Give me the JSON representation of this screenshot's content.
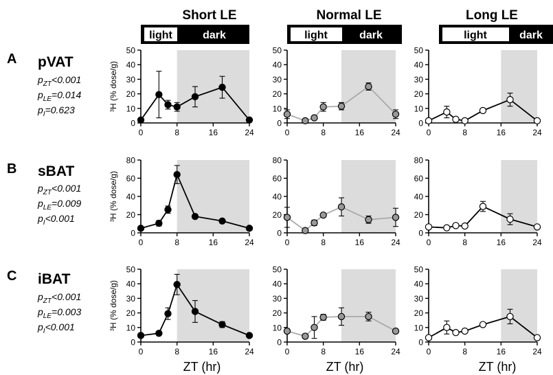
{
  "columns": [
    {
      "title": "Short LE",
      "light_label": "light",
      "dark_label": "dark",
      "light_fraction": 0.333
    },
    {
      "title": "Normal LE",
      "light_label": "light",
      "dark_label": "dark",
      "light_fraction": 0.5
    },
    {
      "title": "Long LE",
      "light_label": "light",
      "dark_label": "dark",
      "light_fraction": 0.667
    }
  ],
  "rows": [
    {
      "letter": "A",
      "tissue": "pVAT",
      "stats": [
        {
          "p": "p",
          "sub": "ZT",
          "rest": "<0.001"
        },
        {
          "p": "p",
          "sub": "LE",
          "rest": "=0.014"
        },
        {
          "p": "p",
          "sub": "I",
          "rest": "=0.623"
        }
      ]
    },
    {
      "letter": "B",
      "tissue": "sBAT",
      "stats": [
        {
          "p": "p",
          "sub": "ZT",
          "rest": "<0.001"
        },
        {
          "p": "p",
          "sub": "LE",
          "rest": "=0.009"
        },
        {
          "p": "p",
          "sub": "I",
          "rest": "<0.001"
        }
      ]
    },
    {
      "letter": "C",
      "tissue": "iBAT",
      "stats": [
        {
          "p": "p",
          "sub": "ZT",
          "rest": "<0.001"
        },
        {
          "p": "p",
          "sub": "LE",
          "rest": "=0.003"
        },
        {
          "p": "p",
          "sub": "I",
          "rest": "<0.001"
        }
      ]
    }
  ],
  "ylabel": "³H (% dose/g)",
  "xlabel": "ZT (hr)",
  "colors": {
    "short": "#000000",
    "normal": "#999999",
    "long": "#ffffff",
    "line_short": "#000000",
    "line_normal": "#aaaaaa",
    "line_long": "#000000",
    "shade": "#dcdcdc"
  },
  "chart_data": [
    {
      "type": "line",
      "row": "pVAT",
      "column": "Short LE",
      "xlabel": "",
      "ylabel": "³H (% dose/g)",
      "xlim": [
        0,
        24
      ],
      "xticks": [
        "0",
        "8",
        "16",
        "24"
      ],
      "ylim": [
        0,
        50
      ],
      "yticks": [
        "0",
        "10",
        "20",
        "30",
        "40",
        "50"
      ],
      "dark_start": 8,
      "points": [
        {
          "x": 0,
          "y": 2,
          "err": 0
        },
        {
          "x": 4,
          "y": 19.5,
          "err": 16
        },
        {
          "x": 6,
          "y": 12.5,
          "err": 3
        },
        {
          "x": 8,
          "y": 11,
          "err": 3
        },
        {
          "x": 12,
          "y": 18,
          "err": 7
        },
        {
          "x": 18,
          "y": 24.5,
          "err": 7.5
        },
        {
          "x": 24,
          "y": 2,
          "err": 0
        }
      ]
    },
    {
      "type": "line",
      "row": "pVAT",
      "column": "Normal LE",
      "xlabel": "",
      "ylabel": "",
      "xlim": [
        0,
        24
      ],
      "xticks": [
        "0",
        "8",
        "16",
        "24"
      ],
      "ylim": [
        0,
        50
      ],
      "yticks": [
        "0",
        "10",
        "20",
        "30",
        "40",
        "50"
      ],
      "dark_start": 12,
      "points": [
        {
          "x": 0,
          "y": 6,
          "err": 3
        },
        {
          "x": 4,
          "y": 1.5,
          "err": 0.5
        },
        {
          "x": 6,
          "y": 3.5,
          "err": 1
        },
        {
          "x": 8,
          "y": 11,
          "err": 3
        },
        {
          "x": 12,
          "y": 11.5,
          "err": 2.5
        },
        {
          "x": 18,
          "y": 25,
          "err": 2.5
        },
        {
          "x": 24,
          "y": 6,
          "err": 3
        }
      ]
    },
    {
      "type": "line",
      "row": "pVAT",
      "column": "Long LE",
      "xlabel": "",
      "ylabel": "",
      "xlim": [
        0,
        24
      ],
      "xticks": [
        "0",
        "8",
        "16",
        "24"
      ],
      "ylim": [
        0,
        50
      ],
      "yticks": [
        "0",
        "10",
        "20",
        "30",
        "40",
        "50"
      ],
      "dark_start": 16,
      "points": [
        {
          "x": 0,
          "y": 1.5,
          "err": 0
        },
        {
          "x": 4,
          "y": 7.5,
          "err": 4
        },
        {
          "x": 6,
          "y": 2.5,
          "err": 1
        },
        {
          "x": 8,
          "y": 1.5,
          "err": 0.5
        },
        {
          "x": 12,
          "y": 8.5,
          "err": 1
        },
        {
          "x": 18,
          "y": 16,
          "err": 4.5
        },
        {
          "x": 24,
          "y": 1.5,
          "err": 0
        }
      ]
    },
    {
      "type": "line",
      "row": "sBAT",
      "column": "Short LE",
      "xlabel": "",
      "ylabel": "³H (% dose/g)",
      "xlim": [
        0,
        24
      ],
      "xticks": [
        "0",
        "8",
        "16",
        "24"
      ],
      "ylim": [
        0,
        80
      ],
      "yticks": [
        "0",
        "20",
        "40",
        "60",
        "80"
      ],
      "dark_start": 8,
      "points": [
        {
          "x": 0,
          "y": 5,
          "err": 1
        },
        {
          "x": 4,
          "y": 10.5,
          "err": 3
        },
        {
          "x": 6,
          "y": 25.5,
          "err": 4
        },
        {
          "x": 8,
          "y": 64,
          "err": 10
        },
        {
          "x": 12,
          "y": 18,
          "err": 2
        },
        {
          "x": 18,
          "y": 13,
          "err": 1.5
        },
        {
          "x": 24,
          "y": 5,
          "err": 1
        }
      ]
    },
    {
      "type": "line",
      "row": "sBAT",
      "column": "Normal LE",
      "xlabel": "",
      "ylabel": "",
      "xlim": [
        0,
        24
      ],
      "xticks": [
        "0",
        "8",
        "16",
        "24"
      ],
      "ylim": [
        0,
        80
      ],
      "yticks": [
        "0",
        "20",
        "40",
        "60",
        "80"
      ],
      "dark_start": 12,
      "points": [
        {
          "x": 0,
          "y": 17,
          "err": 11
        },
        {
          "x": 4,
          "y": 2.5,
          "err": 1
        },
        {
          "x": 6,
          "y": 11,
          "err": 3
        },
        {
          "x": 8,
          "y": 19.5,
          "err": 2
        },
        {
          "x": 12,
          "y": 28.5,
          "err": 10
        },
        {
          "x": 18,
          "y": 14.5,
          "err": 4
        },
        {
          "x": 24,
          "y": 17,
          "err": 10
        }
      ]
    },
    {
      "type": "line",
      "row": "sBAT",
      "column": "Long LE",
      "xlabel": "",
      "ylabel": "",
      "xlim": [
        0,
        24
      ],
      "xticks": [
        "0",
        "8",
        "16",
        "24"
      ],
      "ylim": [
        0,
        80
      ],
      "yticks": [
        "0",
        "20",
        "40",
        "60",
        "80"
      ],
      "dark_start": 16,
      "points": [
        {
          "x": 0,
          "y": 6.5,
          "err": 0
        },
        {
          "x": 4,
          "y": 5.5,
          "err": 1
        },
        {
          "x": 6,
          "y": 8,
          "err": 1
        },
        {
          "x": 8,
          "y": 7.5,
          "err": 1
        },
        {
          "x": 12,
          "y": 29,
          "err": 5.5
        },
        {
          "x": 18,
          "y": 15,
          "err": 6
        },
        {
          "x": 24,
          "y": 6.5,
          "err": 0
        }
      ]
    },
    {
      "type": "line",
      "row": "iBAT",
      "column": "Short LE",
      "xlabel": "ZT (hr)",
      "ylabel": "³H (% dose/g)",
      "xlim": [
        0,
        24
      ],
      "xticks": [
        "0",
        "8",
        "16",
        "24"
      ],
      "ylim": [
        0,
        50
      ],
      "yticks": [
        "0",
        "10",
        "20",
        "30",
        "40",
        "50"
      ],
      "dark_start": 8,
      "points": [
        {
          "x": 0,
          "y": 4.5,
          "err": 0
        },
        {
          "x": 4,
          "y": 6,
          "err": 1
        },
        {
          "x": 6,
          "y": 19.5,
          "err": 4
        },
        {
          "x": 8,
          "y": 39.5,
          "err": 7
        },
        {
          "x": 12,
          "y": 21,
          "err": 7.5
        },
        {
          "x": 18,
          "y": 12,
          "err": 2
        },
        {
          "x": 24,
          "y": 4.5,
          "err": 0
        }
      ]
    },
    {
      "type": "line",
      "row": "iBAT",
      "column": "Normal LE",
      "xlabel": "ZT (hr)",
      "ylabel": "",
      "xlim": [
        0,
        24
      ],
      "xticks": [
        "0",
        "8",
        "16",
        "24"
      ],
      "ylim": [
        0,
        50
      ],
      "yticks": [
        "0",
        "10",
        "20",
        "30",
        "40",
        "50"
      ],
      "dark_start": 12,
      "points": [
        {
          "x": 0,
          "y": 7.5,
          "err": 0
        },
        {
          "x": 4,
          "y": 4,
          "err": 1.5
        },
        {
          "x": 6,
          "y": 10,
          "err": 7.5
        },
        {
          "x": 8,
          "y": 17,
          "err": 2
        },
        {
          "x": 12,
          "y": 17.5,
          "err": 6
        },
        {
          "x": 18,
          "y": 17.5,
          "err": 3
        },
        {
          "x": 24,
          "y": 7.5,
          "err": 0
        }
      ]
    },
    {
      "type": "line",
      "row": "iBAT",
      "column": "Long LE",
      "xlabel": "ZT (hr)",
      "ylabel": "",
      "xlim": [
        0,
        24
      ],
      "xticks": [
        "0",
        "8",
        "16",
        "24"
      ],
      "ylim": [
        0,
        50
      ],
      "yticks": [
        "0",
        "10",
        "20",
        "30",
        "40",
        "50"
      ],
      "dark_start": 16,
      "points": [
        {
          "x": 0,
          "y": 3,
          "err": 0
        },
        {
          "x": 4,
          "y": 10,
          "err": 4.5
        },
        {
          "x": 6,
          "y": 6.5,
          "err": 1
        },
        {
          "x": 8,
          "y": 7.5,
          "err": 1
        },
        {
          "x": 12,
          "y": 12,
          "err": 1
        },
        {
          "x": 18,
          "y": 17.5,
          "err": 5
        },
        {
          "x": 24,
          "y": 3,
          "err": 0
        }
      ]
    }
  ]
}
